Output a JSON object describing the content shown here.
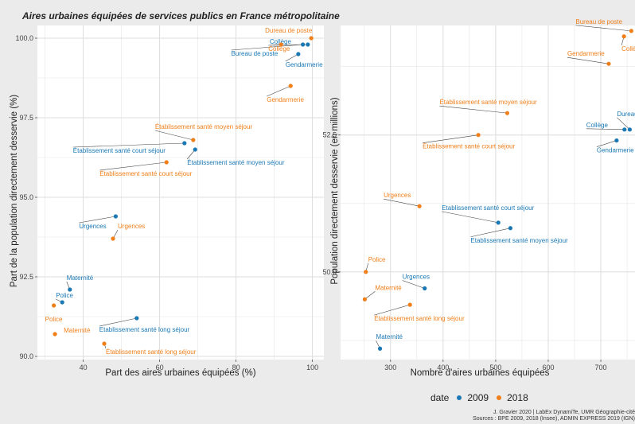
{
  "title": "Aires urbaines équipées de services publics en France métropolitaine",
  "legend": {
    "title": "date",
    "items": [
      {
        "label": "2009",
        "color": "#1a78b4"
      },
      {
        "label": "2018",
        "color": "#f07f1a"
      }
    ]
  },
  "credits": [
    "J. Gravier 2020 | LabEx DynamiTe, UMR Géographie-cité",
    "Sources : BPE 2009, 2018 (Insee), ADMIN EXPRESS 2019 (IGN)"
  ],
  "chart_data": [
    {
      "type": "scatter",
      "xlabel": "Part des aires urbaines équipées (%)",
      "ylabel": "Part de la population directement desservie (%)",
      "xlim": [
        28,
        103
      ],
      "ylim": [
        89.9,
        100.4
      ],
      "xticks": [
        "40",
        "60",
        "80",
        "100"
      ],
      "yticks": [
        "90.0",
        "92.5",
        "95.0",
        "97.5",
        "100.0"
      ],
      "series": [
        {
          "name": "2009",
          "color": "#1a78b4",
          "points": [
            {
              "label": "Collège",
              "x": 98.8,
              "y": 99.8
            },
            {
              "label": "Bureau de poste",
              "x": 97.5,
              "y": 99.8
            },
            {
              "label": "Gendarmerie",
              "x": 96.3,
              "y": 99.5
            },
            {
              "label": "Établissement santé court séjour",
              "x": 66.5,
              "y": 96.7
            },
            {
              "label": "Établissement santé moyen séjour",
              "x": 69.3,
              "y": 96.5
            },
            {
              "label": "Urgences",
              "x": 48.5,
              "y": 94.4
            },
            {
              "label": "Maternité",
              "x": 36.5,
              "y": 92.1
            },
            {
              "label": "Police",
              "x": 34.5,
              "y": 91.7
            },
            {
              "label": "Etablissement santé long séjour",
              "x": 54.0,
              "y": 91.2
            }
          ]
        },
        {
          "name": "2018",
          "color": "#f07f1a",
          "points": [
            {
              "label": "Dureau de poste",
              "x": 99.7,
              "y": 100.0
            },
            {
              "label": "Collège",
              "x": 91.8,
              "y": 99.8
            },
            {
              "label": "Gendarmerie",
              "x": 94.3,
              "y": 98.5
            },
            {
              "label": "Établissement santé moyen séjour",
              "x": 68.8,
              "y": 96.8
            },
            {
              "label": "Établissement santé court séjour",
              "x": 61.8,
              "y": 96.1
            },
            {
              "label": "Urgences",
              "x": 47.8,
              "y": 93.7
            },
            {
              "label": "Police",
              "x": 32.3,
              "y": 91.6
            },
            {
              "label": "Maternité",
              "x": 32.6,
              "y": 90.7
            },
            {
              "label": "Établissement santé long séjour",
              "x": 45.5,
              "y": 90.4
            }
          ]
        }
      ]
    },
    {
      "type": "scatter",
      "xlabel": "Nombre d'aires urbaines équipées",
      "ylabel": "Population directement desservie (en millions)",
      "xlim": [
        205,
        765
      ],
      "ylim": [
        48.4,
        54.5
      ],
      "xticks": [
        "300",
        "400",
        "500",
        "600",
        "700"
      ],
      "yticks": [
        "50.0",
        "52.5"
      ],
      "series": [
        {
          "name": "2009",
          "color": "#1a78b4",
          "points": [
            {
              "label": "Dureau de poste",
              "x": 755,
              "y": 52.6
            },
            {
              "label": "Collège",
              "x": 745,
              "y": 52.6
            },
            {
              "label": "Gendarmerie",
              "x": 730,
              "y": 52.4
            },
            {
              "label": "Etablissement santé court séjour",
              "x": 505,
              "y": 50.9
            },
            {
              "label": "Etablissement santé moyen séjour",
              "x": 528,
              "y": 50.8
            },
            {
              "label": "Urgences",
              "x": 365,
              "y": 49.7
            },
            {
              "label": "Maternité",
              "x": 280,
              "y": 48.6
            },
            {
              "label": "Police",
              "x": 262,
              "y": 48.3
            },
            {
              "label": "Etablissement santé long séjour",
              "x": 411,
              "y": 48.1
            }
          ]
        },
        {
          "name": "2018",
          "color": "#f07f1a",
          "points": [
            {
              "label": "Bureau de poste",
              "x": 758,
              "y": 54.4
            },
            {
              "label": "Collège",
              "x": 744,
              "y": 54.3
            },
            {
              "label": "Gendarmerie",
              "x": 715,
              "y": 53.8
            },
            {
              "label": "Établissement santé moyen séjour",
              "x": 522,
              "y": 52.9
            },
            {
              "label": "Établissement santé court séjour",
              "x": 467,
              "y": 52.5
            },
            {
              "label": "Urgences",
              "x": 355,
              "y": 51.2
            },
            {
              "label": "Police",
              "x": 253,
              "y": 50.0
            },
            {
              "label": "Maternité",
              "x": 251,
              "y": 49.5
            },
            {
              "label": "Établissement santé long séjour",
              "x": 337,
              "y": 49.4
            }
          ]
        }
      ]
    }
  ]
}
